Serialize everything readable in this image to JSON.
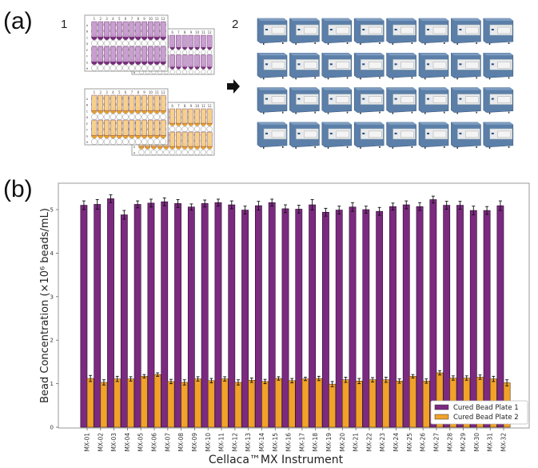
{
  "panel_a": {
    "label": "(a)",
    "step1_label": "1",
    "step2_label": "2",
    "plate_columns": [
      "1",
      "2",
      "3",
      "4",
      "5",
      "6",
      "7",
      "8",
      "9",
      "10",
      "11",
      "12"
    ],
    "plate_rows": [
      "A",
      "B",
      "C",
      "D",
      "E",
      "F",
      "G",
      "H"
    ],
    "plate_colors": {
      "plate1": "#7b2a80",
      "plate1_light": "#c89ad0",
      "plate2": "#f0a22a",
      "plate2_light": "#f7cf87"
    },
    "instrument_grid": {
      "rows": 4,
      "cols": 8,
      "color": "#5b7fa8"
    },
    "arrow_icon": "right-arrow"
  },
  "panel_b": {
    "label": "(b)"
  },
  "chart_data": {
    "type": "bar",
    "title": "",
    "xlabel": "Cellaca™MX Instrument",
    "ylabel": "Bead Concentration (×10⁶ beads/mL)",
    "ylim": [
      0,
      5.5
    ],
    "yticks": [
      "0",
      "1",
      "2",
      "3",
      "4",
      "5"
    ],
    "grid": false,
    "legend_position": "bottom-right",
    "categories": [
      "MX-01",
      "MX-02",
      "MX-03",
      "MX-04",
      "MX-05",
      "MX-06",
      "MX-07",
      "MX-08",
      "MX-09",
      "MX-10",
      "MX-11",
      "MX-12",
      "MX-13",
      "MX-14",
      "MX-15",
      "MX-16",
      "MX-17",
      "MX-18",
      "MX-19",
      "MX-20",
      "MX-21",
      "MX-22",
      "MX-23",
      "MX-24",
      "MX-25",
      "MX-26",
      "MX-27",
      "MX-28",
      "MX-29",
      "MX-30",
      "MX-31",
      "MX-32"
    ],
    "series": [
      {
        "name": "Cured Bead Plate 1",
        "color": "#7b2a80",
        "values": [
          5.1,
          5.12,
          5.25,
          4.88,
          5.12,
          5.15,
          5.18,
          5.14,
          5.06,
          5.14,
          5.16,
          5.11,
          4.99,
          5.09,
          5.16,
          5.02,
          5.01,
          5.11,
          4.94,
          4.99,
          5.06,
          5.0,
          4.96,
          5.07,
          5.11,
          5.07,
          5.23,
          5.1,
          5.1,
          4.98,
          4.98,
          5.09
        ],
        "errors": [
          0.1,
          0.11,
          0.09,
          0.1,
          0.08,
          0.09,
          0.09,
          0.09,
          0.07,
          0.08,
          0.08,
          0.09,
          0.09,
          0.1,
          0.08,
          0.09,
          0.09,
          0.12,
          0.09,
          0.09,
          0.1,
          0.08,
          0.09,
          0.08,
          0.09,
          0.09,
          0.08,
          0.09,
          0.09,
          0.1,
          0.09,
          0.11
        ]
      },
      {
        "name": "Cured Bead Plate 2",
        "color": "#f0a22a",
        "values": [
          1.12,
          1.03,
          1.11,
          1.11,
          1.17,
          1.21,
          1.05,
          1.03,
          1.11,
          1.07,
          1.11,
          1.03,
          1.08,
          1.05,
          1.12,
          1.07,
          1.11,
          1.12,
          0.99,
          1.09,
          1.06,
          1.09,
          1.09,
          1.06,
          1.17,
          1.06,
          1.25,
          1.13,
          1.13,
          1.15,
          1.11,
          1.02
        ]
      }
    ],
    "series_errors_plate2": [
      0.07,
      0.06,
      0.06,
      0.05,
      0.04,
      0.04,
      0.05,
      0.06,
      0.05,
      0.05,
      0.05,
      0.06,
      0.05,
      0.05,
      0.04,
      0.05,
      0.04,
      0.05,
      0.06,
      0.06,
      0.06,
      0.05,
      0.06,
      0.05,
      0.04,
      0.05,
      0.05,
      0.05,
      0.05,
      0.05,
      0.06,
      0.07
    ]
  }
}
